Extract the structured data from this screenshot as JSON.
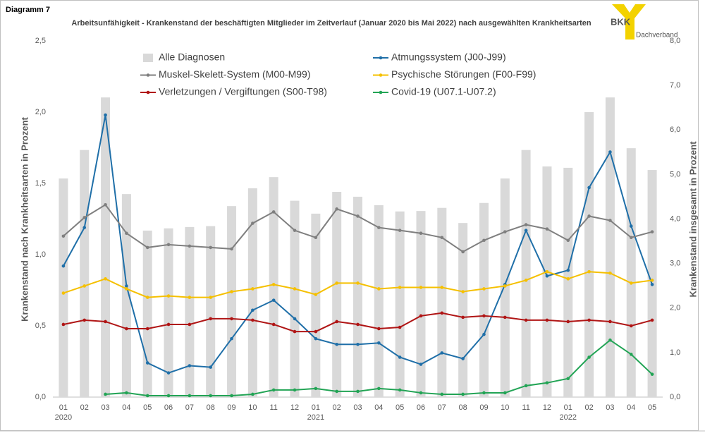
{
  "header": {
    "label": "Diagramm 7",
    "logo": "BKK",
    "logo_sub": "Dachverband"
  },
  "chart_data": {
    "type": "combo",
    "title": "Arbeitsunfähigkeit - Krankenstand der beschäftigten Mitglieder im Zeitverlauf (Januar 2020 bis Mai 2022) nach ausgewählten Krankheitsarten",
    "y_label": "Krankenstand nach Krankheitsarten in Prozent",
    "y2_label": "Krankenstand insgesamt in Prozent",
    "categories": [
      "01",
      "02",
      "03",
      "04",
      "05",
      "06",
      "07",
      "08",
      "09",
      "10",
      "11",
      "12",
      "01",
      "02",
      "03",
      "04",
      "05",
      "06",
      "07",
      "08",
      "09",
      "10",
      "11",
      "12",
      "01",
      "02",
      "03",
      "04",
      "05"
    ],
    "category_groups": [
      "2020",
      null,
      null,
      null,
      null,
      null,
      null,
      null,
      null,
      null,
      null,
      null,
      "2021",
      null,
      null,
      null,
      null,
      null,
      null,
      null,
      null,
      null,
      null,
      null,
      "2022",
      null,
      null,
      null,
      null
    ],
    "ylim": [
      0,
      2.5
    ],
    "yticks": [
      {
        "value": 0,
        "label": "0,0"
      },
      {
        "value": 0.5,
        "label": "0,5"
      },
      {
        "value": 1,
        "label": "1,0"
      },
      {
        "value": 1.5,
        "label": "1,5"
      },
      {
        "value": 2,
        "label": "2,0"
      },
      {
        "value": 2.5,
        "label": "2,5"
      }
    ],
    "y2lim": [
      0,
      8
    ],
    "y2ticks": [
      {
        "value": 0,
        "label": "0,0"
      },
      {
        "value": 1,
        "label": "1,0"
      },
      {
        "value": 2,
        "label": "2,0"
      },
      {
        "value": 3,
        "label": "3,0"
      },
      {
        "value": 4,
        "label": "4,0"
      },
      {
        "value": 5,
        "label": "5,0"
      },
      {
        "value": 6,
        "label": "6,0"
      },
      {
        "value": 7,
        "label": "7,0"
      },
      {
        "value": 8,
        "label": "8,0"
      }
    ],
    "series": [
      {
        "name": "Alle Diagnosen",
        "type": "bar",
        "axis": "y2",
        "color": "#d9d9d9",
        "values": [
          4.91,
          5.55,
          6.73,
          4.56,
          3.74,
          3.79,
          3.82,
          3.84,
          4.29,
          4.69,
          4.94,
          4.41,
          4.12,
          4.61,
          4.5,
          4.31,
          4.17,
          4.18,
          4.25,
          3.91,
          4.36,
          4.91,
          5.55,
          5.18,
          5.15,
          6.4,
          6.73,
          5.59,
          5.1
        ]
      },
      {
        "name": "Atmungssystem (J00-J99)",
        "type": "line",
        "color": "#1f6fa8",
        "values": [
          0.92,
          1.19,
          1.98,
          0.78,
          0.24,
          0.17,
          0.22,
          0.21,
          0.41,
          0.61,
          0.68,
          0.55,
          0.41,
          0.37,
          0.37,
          0.38,
          0.28,
          0.23,
          0.31,
          0.27,
          0.44,
          0.79,
          1.17,
          0.85,
          0.89,
          1.47,
          1.72,
          1.2,
          0.79
        ]
      },
      {
        "name": "Muskel-Skelett-System (M00-M99)",
        "type": "line",
        "color": "#7f7f7f",
        "values": [
          1.13,
          1.26,
          1.35,
          1.15,
          1.05,
          1.07,
          1.06,
          1.05,
          1.04,
          1.22,
          1.3,
          1.17,
          1.12,
          1.32,
          1.27,
          1.19,
          1.17,
          1.15,
          1.12,
          1.02,
          1.1,
          1.16,
          1.21,
          1.18,
          1.1,
          1.27,
          1.24,
          1.12,
          1.16
        ]
      },
      {
        "name": "Psychische Störungen (F00-F99)",
        "type": "line",
        "color": "#f5c000",
        "values": [
          0.73,
          0.78,
          0.83,
          0.76,
          0.7,
          0.71,
          0.7,
          0.7,
          0.74,
          0.76,
          0.79,
          0.76,
          0.72,
          0.8,
          0.8,
          0.76,
          0.77,
          0.77,
          0.77,
          0.74,
          0.76,
          0.78,
          0.82,
          0.88,
          0.83,
          0.88,
          0.87,
          0.8,
          0.82
        ]
      },
      {
        "name": "Verletzungen / Vergiftungen (S00-T98)",
        "type": "line",
        "color": "#b01515",
        "values": [
          0.51,
          0.54,
          0.53,
          0.48,
          0.48,
          0.51,
          0.51,
          0.55,
          0.55,
          0.54,
          0.51,
          0.46,
          0.46,
          0.53,
          0.51,
          0.48,
          0.49,
          0.57,
          0.59,
          0.56,
          0.57,
          0.56,
          0.54,
          0.54,
          0.53,
          0.54,
          0.53,
          0.5,
          0.54
        ]
      },
      {
        "name": "Covid-19 (U07.1-U07.2)",
        "type": "line",
        "color": "#22a455",
        "values": [
          null,
          null,
          0.02,
          0.03,
          0.01,
          0.01,
          0.01,
          0.01,
          0.01,
          0.02,
          0.05,
          0.05,
          0.06,
          0.04,
          0.04,
          0.06,
          0.05,
          0.03,
          0.02,
          0.02,
          0.03,
          0.03,
          0.08,
          0.1,
          0.13,
          0.28,
          0.4,
          0.3,
          0.16
        ]
      }
    ]
  }
}
